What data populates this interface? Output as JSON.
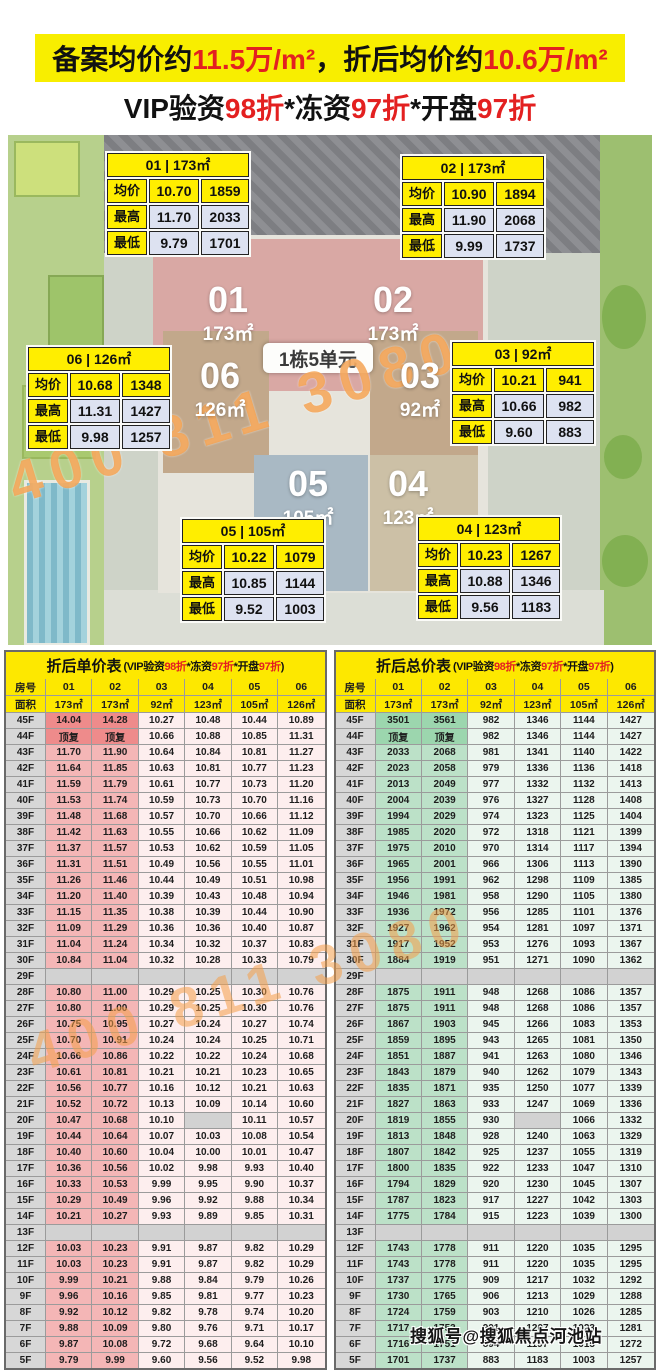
{
  "banner": {
    "segments": [
      {
        "t": "备案均价约"
      },
      {
        "t": "11.5万/m²",
        "hl": true
      },
      {
        "t": "，折后均价约"
      },
      {
        "t": "10.6万/m²",
        "hl": true
      }
    ]
  },
  "subtitle": {
    "segments": [
      {
        "t": "VIP验资"
      },
      {
        "t": "98折",
        "hl": true
      },
      {
        "t": "*冻资"
      },
      {
        "t": "97折",
        "hl": true
      },
      {
        "t": "*开盘"
      },
      {
        "t": "97折",
        "hl": true
      }
    ]
  },
  "map": {
    "center_label": "1栋5单元",
    "watermark": "400 811 3080",
    "callout_labels": {
      "avg": "均价",
      "max": "最高",
      "min": "最低"
    },
    "buildings": [
      {
        "id": "01",
        "area": "173㎡"
      },
      {
        "id": "02",
        "area": "173㎡"
      },
      {
        "id": "03",
        "area": "92㎡"
      },
      {
        "id": "04",
        "area": "123㎡"
      },
      {
        "id": "05",
        "area": "105㎡"
      },
      {
        "id": "06",
        "area": "126㎡"
      }
    ],
    "callouts": [
      {
        "id": "01",
        "area": "173㎡",
        "avg": [
          "10.70",
          "1859"
        ],
        "max": [
          "11.70",
          "2033"
        ],
        "min": [
          "9.79",
          "1701"
        ]
      },
      {
        "id": "02",
        "area": "173㎡",
        "avg": [
          "10.90",
          "1894"
        ],
        "max": [
          "11.90",
          "2068"
        ],
        "min": [
          "9.99",
          "1737"
        ]
      },
      {
        "id": "06",
        "area": "126㎡",
        "avg": [
          "10.68",
          "1348"
        ],
        "max": [
          "11.31",
          "1427"
        ],
        "min": [
          "9.98",
          "1257"
        ]
      },
      {
        "id": "03",
        "area": "92㎡",
        "avg": [
          "10.21",
          "941"
        ],
        "max": [
          "10.66",
          "982"
        ],
        "min": [
          "9.60",
          "883"
        ]
      },
      {
        "id": "05",
        "area": "105㎡",
        "avg": [
          "10.22",
          "1079"
        ],
        "max": [
          "10.85",
          "1144"
        ],
        "min": [
          "9.52",
          "1003"
        ]
      },
      {
        "id": "04",
        "area": "123㎡",
        "avg": [
          "10.23",
          "1267"
        ],
        "max": [
          "10.88",
          "1346"
        ],
        "min": [
          "9.56",
          "1183"
        ]
      }
    ]
  },
  "tables": {
    "col_header": "房号",
    "area_header": "面积",
    "columns": [
      "01",
      "02",
      "03",
      "04",
      "05",
      "06"
    ],
    "areas": [
      "173㎡",
      "173㎡",
      "92㎡",
      "123㎡",
      "105㎡",
      "126㎡"
    ],
    "subtitle_segments": [
      {
        "t": "("
      },
      {
        "t": "VIP验资"
      },
      {
        "t": "98折",
        "hl": true
      },
      {
        "t": "*冻资"
      },
      {
        "t": "97折",
        "hl": true
      },
      {
        "t": "*开盘"
      },
      {
        "t": "97折",
        "hl": true
      },
      {
        "t": ")"
      }
    ],
    "unit": {
      "title": "折后单价表",
      "rows": [
        {
          "f": "45F",
          "v": [
            "14.04",
            "14.28",
            "10.27",
            "10.48",
            "10.44",
            "10.89"
          ]
        },
        {
          "f": "44F",
          "v": [
            "顶复",
            "顶复",
            "10.66",
            "10.88",
            "10.85",
            "11.31"
          ]
        },
        {
          "f": "43F",
          "v": [
            "11.70",
            "11.90",
            "10.64",
            "10.84",
            "10.81",
            "11.27"
          ]
        },
        {
          "f": "42F",
          "v": [
            "11.64",
            "11.85",
            "10.63",
            "10.81",
            "10.77",
            "11.23"
          ]
        },
        {
          "f": "41F",
          "v": [
            "11.59",
            "11.79",
            "10.61",
            "10.77",
            "10.73",
            "11.20"
          ]
        },
        {
          "f": "40F",
          "v": [
            "11.53",
            "11.74",
            "10.59",
            "10.73",
            "10.70",
            "11.16"
          ]
        },
        {
          "f": "39F",
          "v": [
            "11.48",
            "11.68",
            "10.57",
            "10.70",
            "10.66",
            "11.12"
          ]
        },
        {
          "f": "38F",
          "v": [
            "11.42",
            "11.63",
            "10.55",
            "10.66",
            "10.62",
            "11.09"
          ]
        },
        {
          "f": "37F",
          "v": [
            "11.37",
            "11.57",
            "10.53",
            "10.62",
            "10.59",
            "11.05"
          ]
        },
        {
          "f": "36F",
          "v": [
            "11.31",
            "11.51",
            "10.49",
            "10.56",
            "10.55",
            "11.01"
          ]
        },
        {
          "f": "35F",
          "v": [
            "11.26",
            "11.46",
            "10.44",
            "10.49",
            "10.51",
            "10.98"
          ]
        },
        {
          "f": "34F",
          "v": [
            "11.20",
            "11.40",
            "10.39",
            "10.43",
            "10.48",
            "10.94"
          ]
        },
        {
          "f": "33F",
          "v": [
            "11.15",
            "11.35",
            "10.38",
            "10.39",
            "10.44",
            "10.90"
          ]
        },
        {
          "f": "32F",
          "v": [
            "11.09",
            "11.29",
            "10.36",
            "10.36",
            "10.40",
            "10.87"
          ]
        },
        {
          "f": "31F",
          "v": [
            "11.04",
            "11.24",
            "10.34",
            "10.32",
            "10.37",
            "10.83"
          ]
        },
        {
          "f": "30F",
          "v": [
            "10.84",
            "11.04",
            "10.32",
            "10.28",
            "10.33",
            "10.79"
          ]
        },
        {
          "f": "29F",
          "v": [
            "",
            "",
            "",
            "",
            "",
            ""
          ]
        },
        {
          "f": "28F",
          "v": [
            "10.80",
            "11.00",
            "10.29",
            "10.25",
            "10.30",
            "10.76"
          ]
        },
        {
          "f": "27F",
          "v": [
            "10.80",
            "11.00",
            "10.29",
            "10.25",
            "10.30",
            "10.76"
          ]
        },
        {
          "f": "26F",
          "v": [
            "10.75",
            "10.95",
            "10.27",
            "10.24",
            "10.27",
            "10.74"
          ]
        },
        {
          "f": "25F",
          "v": [
            "10.70",
            "10.91",
            "10.24",
            "10.24",
            "10.25",
            "10.71"
          ]
        },
        {
          "f": "24F",
          "v": [
            "10.66",
            "10.86",
            "10.22",
            "10.22",
            "10.24",
            "10.68"
          ]
        },
        {
          "f": "23F",
          "v": [
            "10.61",
            "10.81",
            "10.21",
            "10.21",
            "10.23",
            "10.65"
          ]
        },
        {
          "f": "22F",
          "v": [
            "10.56",
            "10.77",
            "10.16",
            "10.12",
            "10.21",
            "10.63"
          ]
        },
        {
          "f": "21F",
          "v": [
            "10.52",
            "10.72",
            "10.13",
            "10.09",
            "10.14",
            "10.60"
          ]
        },
        {
          "f": "20F",
          "v": [
            "10.47",
            "10.68",
            "10.10",
            "",
            "10.11",
            "10.57"
          ]
        },
        {
          "f": "19F",
          "v": [
            "10.44",
            "10.64",
            "10.07",
            "10.03",
            "10.08",
            "10.54"
          ]
        },
        {
          "f": "18F",
          "v": [
            "10.40",
            "10.60",
            "10.04",
            "10.00",
            "10.01",
            "10.47"
          ]
        },
        {
          "f": "17F",
          "v": [
            "10.36",
            "10.56",
            "10.02",
            "9.98",
            "9.93",
            "10.40"
          ]
        },
        {
          "f": "16F",
          "v": [
            "10.33",
            "10.53",
            "9.99",
            "9.95",
            "9.90",
            "10.37"
          ]
        },
        {
          "f": "15F",
          "v": [
            "10.29",
            "10.49",
            "9.96",
            "9.92",
            "9.88",
            "10.34"
          ]
        },
        {
          "f": "14F",
          "v": [
            "10.21",
            "10.27",
            "9.93",
            "9.89",
            "9.85",
            "10.31"
          ]
        },
        {
          "f": "13F",
          "v": [
            "",
            "",
            "",
            "",
            "",
            ""
          ]
        },
        {
          "f": "12F",
          "v": [
            "10.03",
            "10.23",
            "9.91",
            "9.87",
            "9.82",
            "10.29"
          ]
        },
        {
          "f": "11F",
          "v": [
            "10.03",
            "10.23",
            "9.91",
            "9.87",
            "9.82",
            "10.29"
          ]
        },
        {
          "f": "10F",
          "v": [
            "9.99",
            "10.21",
            "9.88",
            "9.84",
            "9.79",
            "10.26"
          ]
        },
        {
          "f": "9F",
          "v": [
            "9.96",
            "10.16",
            "9.85",
            "9.81",
            "9.77",
            "10.23"
          ]
        },
        {
          "f": "8F",
          "v": [
            "9.92",
            "10.12",
            "9.82",
            "9.78",
            "9.74",
            "10.20"
          ]
        },
        {
          "f": "7F",
          "v": [
            "9.88",
            "10.09",
            "9.80",
            "9.76",
            "9.71",
            "10.17"
          ]
        },
        {
          "f": "6F",
          "v": [
            "9.87",
            "10.08",
            "9.72",
            "9.68",
            "9.64",
            "10.10"
          ]
        },
        {
          "f": "5F",
          "v": [
            "9.79",
            "9.99",
            "9.60",
            "9.56",
            "9.52",
            "9.98"
          ]
        }
      ]
    },
    "total": {
      "title": "折后总价表",
      "rows": [
        {
          "f": "45F",
          "v": [
            "3501",
            "3561",
            "982",
            "1346",
            "1144",
            "1427"
          ]
        },
        {
          "f": "44F",
          "v": [
            "顶复",
            "顶复",
            "982",
            "1346",
            "1144",
            "1427"
          ]
        },
        {
          "f": "43F",
          "v": [
            "2033",
            "2068",
            "981",
            "1341",
            "1140",
            "1422"
          ]
        },
        {
          "f": "42F",
          "v": [
            "2023",
            "2058",
            "979",
            "1336",
            "1136",
            "1418"
          ]
        },
        {
          "f": "41F",
          "v": [
            "2013",
            "2049",
            "977",
            "1332",
            "1132",
            "1413"
          ]
        },
        {
          "f": "40F",
          "v": [
            "2004",
            "2039",
            "976",
            "1327",
            "1128",
            "1408"
          ]
        },
        {
          "f": "39F",
          "v": [
            "1994",
            "2029",
            "974",
            "1323",
            "1125",
            "1404"
          ]
        },
        {
          "f": "38F",
          "v": [
            "1985",
            "2020",
            "972",
            "1318",
            "1121",
            "1399"
          ]
        },
        {
          "f": "37F",
          "v": [
            "1975",
            "2010",
            "970",
            "1314",
            "1117",
            "1394"
          ]
        },
        {
          "f": "36F",
          "v": [
            "1965",
            "2001",
            "966",
            "1306",
            "1113",
            "1390"
          ]
        },
        {
          "f": "35F",
          "v": [
            "1956",
            "1991",
            "962",
            "1298",
            "1109",
            "1385"
          ]
        },
        {
          "f": "34F",
          "v": [
            "1946",
            "1981",
            "958",
            "1290",
            "1105",
            "1380"
          ]
        },
        {
          "f": "33F",
          "v": [
            "1936",
            "1972",
            "956",
            "1285",
            "1101",
            "1376"
          ]
        },
        {
          "f": "32F",
          "v": [
            "1927",
            "1962",
            "954",
            "1281",
            "1097",
            "1371"
          ]
        },
        {
          "f": "31F",
          "v": [
            "1917",
            "1952",
            "953",
            "1276",
            "1093",
            "1367"
          ]
        },
        {
          "f": "30F",
          "v": [
            "1884",
            "1919",
            "951",
            "1271",
            "1090",
            "1362"
          ]
        },
        {
          "f": "29F",
          "v": [
            "",
            "",
            "",
            "",
            "",
            ""
          ]
        },
        {
          "f": "28F",
          "v": [
            "1875",
            "1911",
            "948",
            "1268",
            "1086",
            "1357"
          ]
        },
        {
          "f": "27F",
          "v": [
            "1875",
            "1911",
            "948",
            "1268",
            "1086",
            "1357"
          ]
        },
        {
          "f": "26F",
          "v": [
            "1867",
            "1903",
            "945",
            "1266",
            "1083",
            "1353"
          ]
        },
        {
          "f": "25F",
          "v": [
            "1859",
            "1895",
            "943",
            "1265",
            "1081",
            "1350"
          ]
        },
        {
          "f": "24F",
          "v": [
            "1851",
            "1887",
            "941",
            "1263",
            "1080",
            "1346"
          ]
        },
        {
          "f": "23F",
          "v": [
            "1843",
            "1879",
            "940",
            "1262",
            "1079",
            "1343"
          ]
        },
        {
          "f": "22F",
          "v": [
            "1835",
            "1871",
            "935",
            "1250",
            "1077",
            "1339"
          ]
        },
        {
          "f": "21F",
          "v": [
            "1827",
            "1863",
            "933",
            "1247",
            "1069",
            "1336"
          ]
        },
        {
          "f": "20F",
          "v": [
            "1819",
            "1855",
            "930",
            "",
            "1066",
            "1332"
          ]
        },
        {
          "f": "19F",
          "v": [
            "1813",
            "1848",
            "928",
            "1240",
            "1063",
            "1329"
          ]
        },
        {
          "f": "18F",
          "v": [
            "1807",
            "1842",
            "925",
            "1237",
            "1055",
            "1319"
          ]
        },
        {
          "f": "17F",
          "v": [
            "1800",
            "1835",
            "922",
            "1233",
            "1047",
            "1310"
          ]
        },
        {
          "f": "16F",
          "v": [
            "1794",
            "1829",
            "920",
            "1230",
            "1045",
            "1307"
          ]
        },
        {
          "f": "15F",
          "v": [
            "1787",
            "1823",
            "917",
            "1227",
            "1042",
            "1303"
          ]
        },
        {
          "f": "14F",
          "v": [
            "1775",
            "1784",
            "915",
            "1223",
            "1039",
            "1300"
          ]
        },
        {
          "f": "13F",
          "v": [
            "",
            "",
            "",
            "",
            "",
            ""
          ]
        },
        {
          "f": "12F",
          "v": [
            "1743",
            "1778",
            "911",
            "1220",
            "1035",
            "1295"
          ]
        },
        {
          "f": "11F",
          "v": [
            "1743",
            "1778",
            "911",
            "1220",
            "1035",
            "1295"
          ]
        },
        {
          "f": "10F",
          "v": [
            "1737",
            "1775",
            "909",
            "1217",
            "1032",
            "1292"
          ]
        },
        {
          "f": "9F",
          "v": [
            "1730",
            "1765",
            "906",
            "1213",
            "1029",
            "1288"
          ]
        },
        {
          "f": "8F",
          "v": [
            "1724",
            "1759",
            "903",
            "1210",
            "1026",
            "1285"
          ]
        },
        {
          "f": "7F",
          "v": [
            "1717",
            "1753",
            "901",
            "1207",
            "1023",
            "1281"
          ]
        },
        {
          "f": "6F",
          "v": [
            "1716",
            "1751",
            "894",
            "1197",
            "1015",
            "1272"
          ]
        },
        {
          "f": "5F",
          "v": [
            "1701",
            "1737",
            "883",
            "1183",
            "1003",
            "1257"
          ]
        }
      ]
    }
  },
  "watermarks": {
    "phone": "400 811 3080",
    "sohu": "搜狐号@搜狐焦点河池站"
  },
  "colors": {
    "banner_yellow": "#f8ee00",
    "table_yellow": "#fde800",
    "accent_red": "#e32020",
    "unit_strong": "#f4b6b6",
    "unit_top": "#ee8b8b",
    "unit_light": "#fdeeee",
    "total_strong": "#bce1c8",
    "total_top": "#9cd6ae",
    "total_light": "#ebf5ee",
    "watermark_orange": "#f49e48"
  }
}
